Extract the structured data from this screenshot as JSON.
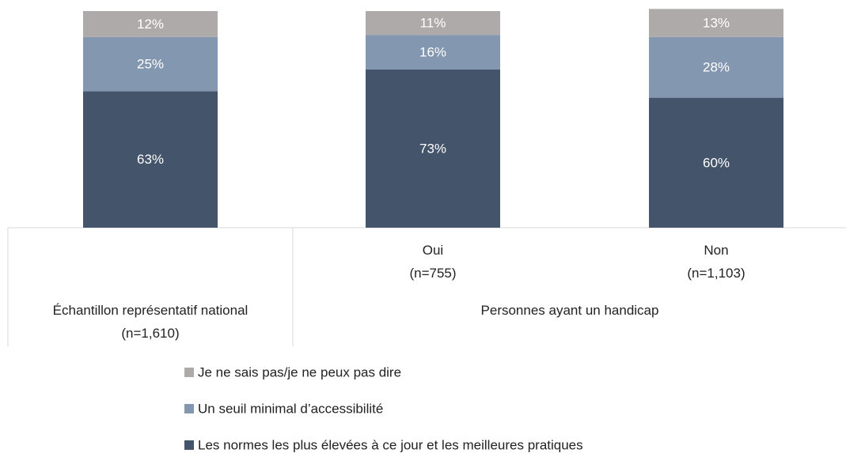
{
  "chart_data": {
    "type": "stacked-bar",
    "categories": [
      "Échantillon représentatif national\n(n=1,610)",
      "Oui\n(n=755)",
      "Non\n(n=1,103)"
    ],
    "group_label": "Personnes ayant un handicap",
    "series": [
      {
        "name": "Les normes les plus élevées à ce jour et les meilleures pratiques",
        "color": "#44546a",
        "values": [
          63,
          73,
          60
        ],
        "value_labels": [
          "63%",
          "73%",
          "60%"
        ]
      },
      {
        "name": "Un seuil minimal d’accessibilité",
        "color": "#8497b0",
        "values": [
          25,
          16,
          28
        ],
        "value_labels": [
          "25%",
          "16%",
          "28%"
        ]
      },
      {
        "name": "Je ne sais pas/je ne peux pas dire",
        "color": "#aeaaaa",
        "values": [
          12,
          11,
          13
        ],
        "value_labels": [
          "12%",
          "11%",
          "13%"
        ]
      }
    ],
    "ylim": [
      0,
      100
    ]
  }
}
